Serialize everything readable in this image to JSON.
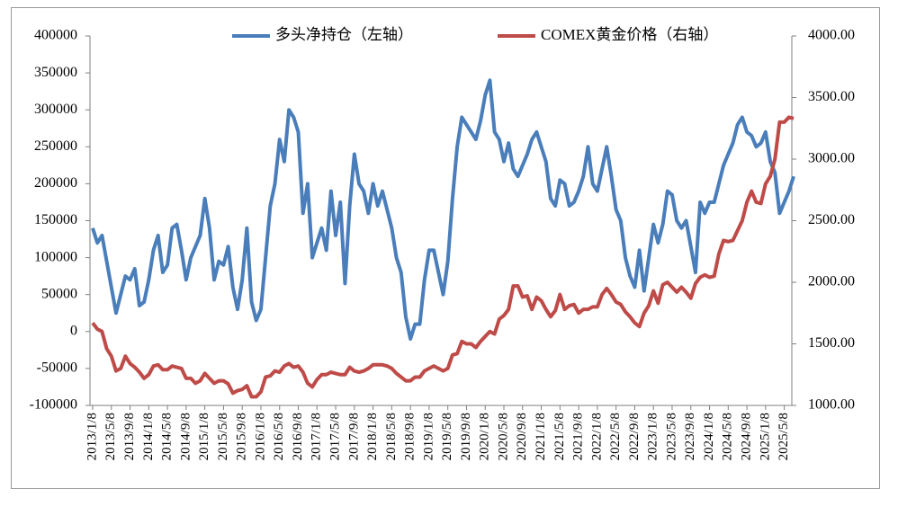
{
  "chart_data": {
    "type": "line",
    "categories": [
      "2013/1/8",
      null,
      null,
      null,
      "2013/5/8",
      null,
      null,
      null,
      "2013/9/8",
      null,
      null,
      null,
      "2014/1/8",
      null,
      null,
      null,
      "2014/5/8",
      null,
      null,
      null,
      "2014/9/8",
      null,
      null,
      null,
      "2015/1/8",
      null,
      null,
      null,
      "2015/5/8",
      null,
      null,
      null,
      "2015/9/8",
      null,
      null,
      null,
      "2016/1/8",
      null,
      null,
      null,
      "2016/5/8",
      null,
      null,
      null,
      "2016/9/8",
      null,
      null,
      null,
      "2017/1/8",
      null,
      null,
      null,
      "2017/5/8",
      null,
      null,
      null,
      "2017/9/8",
      null,
      null,
      null,
      "2018/1/8",
      null,
      null,
      null,
      "2018/5/8",
      null,
      null,
      null,
      "2018/9/8",
      null,
      null,
      null,
      "2019/1/8",
      null,
      null,
      null,
      "2019/5/8",
      null,
      null,
      null,
      "2019/9/8",
      null,
      null,
      null,
      "2020/1/8",
      null,
      null,
      null,
      "2020/5/8",
      null,
      null,
      null,
      "2020/9/8",
      null,
      null,
      null,
      "2021/1/8",
      null,
      null,
      null,
      "2021/5/8",
      null,
      null,
      null,
      "2021/9/8",
      null,
      null,
      null,
      "2022/1/8",
      null,
      null,
      null,
      "2022/5/8",
      null,
      null,
      null,
      "2022/9/8",
      null,
      null,
      null,
      "2023/1/8",
      null,
      null,
      null,
      "2023/5/8",
      null,
      null,
      null,
      "2023/9/8",
      null,
      null,
      null,
      "2024/1/8",
      null,
      null,
      null,
      "2024/5/8",
      null,
      null,
      null,
      "2024/9/8",
      null,
      null,
      null,
      "2025/1/8",
      null,
      null,
      null,
      "2025/5/8",
      null,
      null
    ],
    "series": [
      {
        "name": "多头净持仓（左轴）",
        "color": "#4a7ebb",
        "values": [
          140000,
          120000,
          130000,
          95000,
          60000,
          25000,
          50000,
          75000,
          70000,
          85000,
          35000,
          40000,
          70000,
          110000,
          130000,
          80000,
          90000,
          140000,
          145000,
          110000,
          70000,
          100000,
          115000,
          130000,
          180000,
          140000,
          70000,
          95000,
          90000,
          115000,
          60000,
          30000,
          70000,
          140000,
          40000,
          15000,
          30000,
          100000,
          170000,
          200000,
          260000,
          230000,
          300000,
          290000,
          270000,
          160000,
          200000,
          100000,
          120000,
          140000,
          110000,
          190000,
          130000,
          175000,
          65000,
          170000,
          240000,
          200000,
          190000,
          160000,
          200000,
          170000,
          190000,
          165000,
          140000,
          100000,
          80000,
          20000,
          -10000,
          10000,
          10000,
          70000,
          110000,
          110000,
          80000,
          50000,
          95000,
          180000,
          250000,
          290000,
          280000,
          270000,
          260000,
          285000,
          320000,
          340000,
          270000,
          260000,
          230000,
          255000,
          220000,
          210000,
          225000,
          240000,
          260000,
          270000,
          250000,
          230000,
          180000,
          170000,
          205000,
          200000,
          170000,
          175000,
          190000,
          210000,
          250000,
          200000,
          190000,
          220000,
          250000,
          210000,
          165000,
          150000,
          100000,
          75000,
          60000,
          110000,
          55000,
          100000,
          145000,
          120000,
          145000,
          190000,
          185000,
          150000,
          140000,
          150000,
          115000,
          80000,
          175000,
          160000,
          175000,
          175000,
          200000,
          225000,
          240000,
          255000,
          280000,
          290000,
          270000,
          265000,
          250000,
          255000,
          270000,
          230000,
          215000,
          160000,
          175000,
          190000,
          210000
        ]
      },
      {
        "name": "COMEX黄金价格（右轴）",
        "color": "#be4b48",
        "axis": "y2",
        "values": [
          1670,
          1620,
          1600,
          1460,
          1400,
          1280,
          1300,
          1400,
          1340,
          1310,
          1270,
          1220,
          1250,
          1320,
          1330,
          1290,
          1290,
          1320,
          1310,
          1300,
          1220,
          1220,
          1180,
          1200,
          1260,
          1220,
          1180,
          1200,
          1200,
          1175,
          1100,
          1120,
          1130,
          1160,
          1070,
          1070,
          1110,
          1230,
          1240,
          1280,
          1270,
          1320,
          1340,
          1310,
          1320,
          1270,
          1180,
          1150,
          1210,
          1250,
          1250,
          1270,
          1260,
          1250,
          1250,
          1310,
          1280,
          1270,
          1280,
          1300,
          1330,
          1330,
          1330,
          1320,
          1300,
          1260,
          1230,
          1200,
          1200,
          1230,
          1230,
          1280,
          1300,
          1320,
          1300,
          1280,
          1300,
          1410,
          1420,
          1520,
          1500,
          1500,
          1470,
          1520,
          1560,
          1600,
          1580,
          1700,
          1730,
          1780,
          1970,
          1970,
          1880,
          1890,
          1780,
          1880,
          1850,
          1780,
          1720,
          1770,
          1900,
          1780,
          1810,
          1820,
          1750,
          1780,
          1780,
          1800,
          1800,
          1900,
          1950,
          1900,
          1840,
          1820,
          1760,
          1720,
          1670,
          1640,
          1750,
          1810,
          1930,
          1830,
          1980,
          2000,
          1960,
          1920,
          1960,
          1920,
          1870,
          1990,
          2040,
          2060,
          2040,
          2050,
          2230,
          2340,
          2330,
          2340,
          2420,
          2500,
          2650,
          2740,
          2650,
          2640,
          2800,
          2860,
          3000,
          3300,
          3300,
          3340,
          3330
        ]
      }
    ],
    "ylim": [
      -100000,
      400000
    ],
    "yticks": [
      -100000,
      -50000,
      0,
      50000,
      100000,
      150000,
      200000,
      250000,
      300000,
      350000,
      400000
    ],
    "y2lim": [
      1000,
      4000
    ],
    "y2ticks": [
      {
        "value": 1000,
        "label": "1000.00"
      },
      {
        "value": 1500,
        "label": "1500.00"
      },
      {
        "value": 2000,
        "label": "2000.00"
      },
      {
        "value": 2500,
        "label": "2500.00"
      },
      {
        "value": 3000,
        "label": "3000.00"
      },
      {
        "value": 3500,
        "label": "3500.00"
      },
      {
        "value": 4000,
        "label": "4000.00"
      }
    ],
    "grid": false,
    "legend": "top"
  }
}
